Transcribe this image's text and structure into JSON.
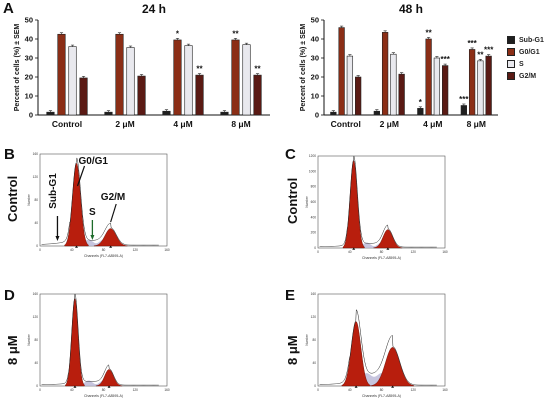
{
  "panel_letters": {
    "a": "A",
    "b": "B",
    "c": "C",
    "d": "D",
    "e": "E"
  },
  "histogram_row_labels": {
    "b": "Control",
    "c": "Control",
    "d": "8 μM",
    "e": "8 μM"
  },
  "annotations": {
    "subg1": "Sub-G1",
    "g0g1": "G0/G1",
    "s": "S",
    "g2m": "G2/M"
  },
  "colors": {
    "sub_g1": "#1f1f1f",
    "g0g1": "#8b2e16",
    "s": "#e9e9ee",
    "g2m": "#5a1a14",
    "sig_star": "#b03030",
    "peak": "#b81e0d",
    "s_phase_fill": "#b9b7d6"
  },
  "chart_data": [
    {
      "type": "bar",
      "title": "24 h",
      "ylabel": "Percent of cells (%) ± SEM",
      "ylim": [
        0,
        50
      ],
      "yticks": [
        "0",
        "10",
        "20",
        "30",
        "40",
        "50"
      ],
      "categories": [
        "Control",
        "2 μM",
        "4 μM",
        "8 μM"
      ],
      "series": [
        {
          "name": "Sub-G1",
          "values": [
            1.5,
            1.5,
            2,
            1.5
          ]
        },
        {
          "name": "G0/G1",
          "values": [
            42.5,
            42.5,
            39.5,
            39.5
          ]
        },
        {
          "name": "S",
          "values": [
            36,
            35.5,
            36.5,
            37
          ]
        },
        {
          "name": "G2/M",
          "values": [
            19.5,
            20.5,
            21,
            21
          ]
        }
      ],
      "significance": [
        {
          "category": "4 μM",
          "series": "G0/G1",
          "label": "*"
        },
        {
          "category": "4 μM",
          "series": "G2/M",
          "label": "**"
        },
        {
          "category": "8 μM",
          "series": "G0/G1",
          "label": "**"
        },
        {
          "category": "8 μM",
          "series": "G2/M",
          "label": "**"
        }
      ]
    },
    {
      "type": "bar",
      "title": "48 h",
      "ylabel": "Percent of cells (%) ± SEM",
      "ylim": [
        0,
        50
      ],
      "yticks": [
        "0",
        "10",
        "20",
        "30",
        "40",
        "50"
      ],
      "categories": [
        "Control",
        "2 μM",
        "4 μM",
        "8 μM"
      ],
      "series": [
        {
          "name": "Sub-G1",
          "values": [
            1.5,
            2,
            3.5,
            5
          ]
        },
        {
          "name": "G0/G1",
          "values": [
            46,
            43.5,
            40,
            34.5
          ]
        },
        {
          "name": "S",
          "values": [
            31,
            32,
            30,
            28.5
          ]
        },
        {
          "name": "G2/M",
          "values": [
            20,
            21.5,
            26,
            31
          ]
        }
      ],
      "significance": [
        {
          "category": "4 μM",
          "series": "Sub-G1",
          "label": "*"
        },
        {
          "category": "4 μM",
          "series": "G0/G1",
          "label": "**"
        },
        {
          "category": "4 μM",
          "series": "G2/M",
          "label": "***"
        },
        {
          "category": "8 μM",
          "series": "Sub-G1",
          "label": "***"
        },
        {
          "category": "8 μM",
          "series": "G0/G1",
          "label": "***"
        },
        {
          "category": "8 μM",
          "series": "S",
          "label": "**"
        },
        {
          "category": "8 μM",
          "series": "G2/M",
          "label": "***"
        }
      ]
    }
  ],
  "legend": [
    "Sub-G1",
    "G0/G1",
    "S",
    "G2/M"
  ],
  "histograms": [
    {
      "key": "b",
      "xlabel": "Channels (FL7-A8595-A)",
      "ylabel": "Number",
      "xticks": [
        "0",
        "40",
        "80",
        "120",
        "160"
      ],
      "yticks": [
        "0",
        "40",
        "80",
        "120",
        "160"
      ]
    },
    {
      "key": "c",
      "xlabel": "Channels (FL7-A8595-A)",
      "ylabel": "Number",
      "xticks": [
        "0",
        "40",
        "80",
        "120",
        "160"
      ],
      "yticks": [
        "0",
        "200",
        "400",
        "600",
        "800",
        "1000",
        "1200"
      ]
    },
    {
      "key": "d",
      "xlabel": "Channels (FL7-A8595-A)",
      "ylabel": "Number",
      "xticks": [
        "0",
        "40",
        "80",
        "120",
        "160"
      ],
      "yticks": [
        "0",
        "40",
        "80",
        "120",
        "160"
      ]
    },
    {
      "key": "e",
      "xlabel": "Channels (FL7-A8595-A)",
      "ylabel": "Number",
      "xticks": [
        "0",
        "40",
        "80",
        "120",
        "160"
      ],
      "yticks": [
        "0",
        "40",
        "80",
        "120",
        "160"
      ]
    }
  ]
}
